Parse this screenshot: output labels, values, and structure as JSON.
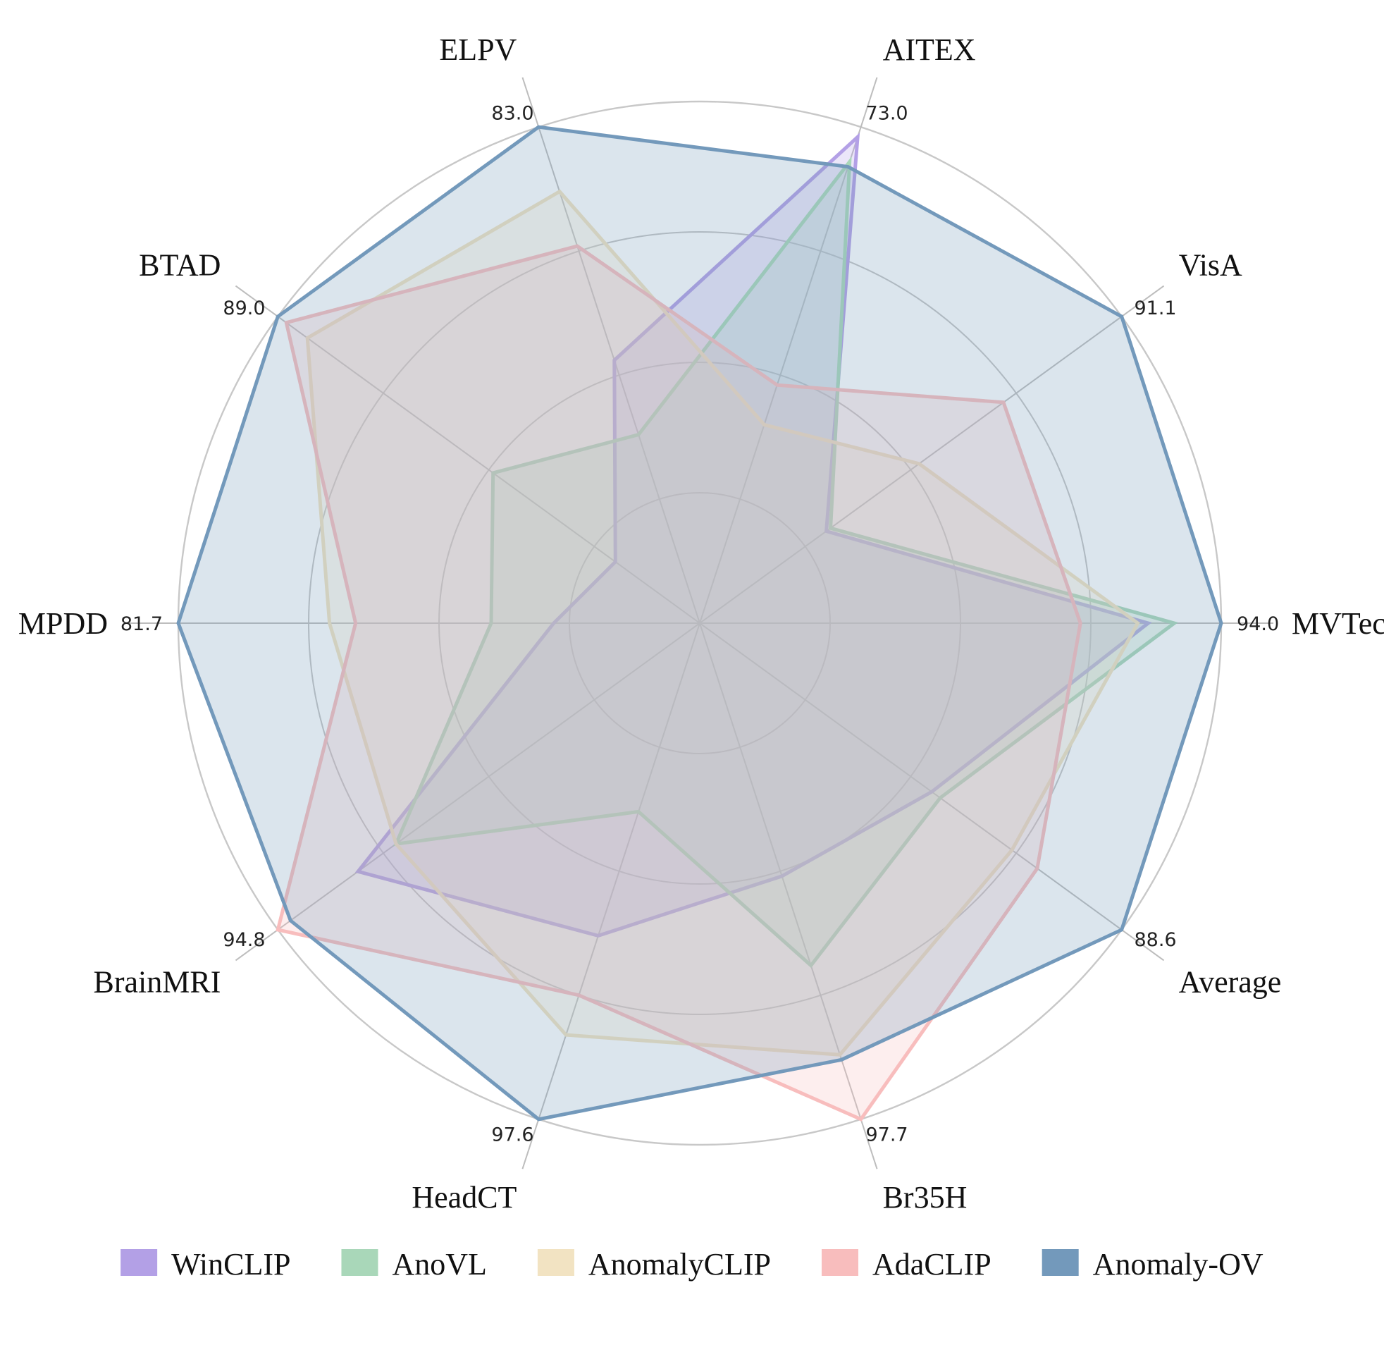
{
  "chart_data": {
    "type": "radar",
    "axes": [
      {
        "name": "MVTec",
        "max_label": "94.0"
      },
      {
        "name": "VisA",
        "max_label": "91.1"
      },
      {
        "name": "AITEX",
        "max_label": "73.0"
      },
      {
        "name": "ELPV",
        "max_label": "83.0"
      },
      {
        "name": "BTAD",
        "max_label": "89.0"
      },
      {
        "name": "MPDD",
        "max_label": "81.7"
      },
      {
        "name": "BrainMRI",
        "max_label": "94.8"
      },
      {
        "name": "HeadCT",
        "max_label": "97.6"
      },
      {
        "name": "Br35H",
        "max_label": "97.7"
      },
      {
        "name": "Average",
        "max_label": "88.6"
      }
    ],
    "normalized_values": true,
    "rlim": [
      0,
      1
    ],
    "grid": true,
    "grid_levels": [
      0.25,
      0.5,
      0.75,
      1.0
    ],
    "legend_position": "bottom",
    "series": [
      {
        "name": "WinCLIP",
        "color": "#b3a0e6",
        "values": [
          0.86,
          0.3,
          0.98,
          0.53,
          0.2,
          0.28,
          0.81,
          0.63,
          0.51,
          0.55
        ]
      },
      {
        "name": "AnoVL",
        "color": "#a9d7b9",
        "values": [
          0.91,
          0.31,
          0.93,
          0.38,
          0.49,
          0.4,
          0.72,
          0.38,
          0.69,
          0.57
        ]
      },
      {
        "name": "AnomalyCLIP",
        "color": "#f2e3c2",
        "values": [
          0.84,
          0.52,
          0.4,
          0.87,
          0.93,
          0.71,
          0.72,
          0.83,
          0.87,
          0.74
        ]
      },
      {
        "name": "AdaCLIP",
        "color": "#f8bdbd",
        "values": [
          0.73,
          0.72,
          0.48,
          0.76,
          0.98,
          0.66,
          1.0,
          0.75,
          1.0,
          0.8
        ]
      },
      {
        "name": "Anomaly-OV",
        "color": "#7399bb",
        "values": [
          1.0,
          1.0,
          0.92,
          1.0,
          1.0,
          1.0,
          0.97,
          1.0,
          0.88,
          1.0
        ]
      }
    ]
  }
}
